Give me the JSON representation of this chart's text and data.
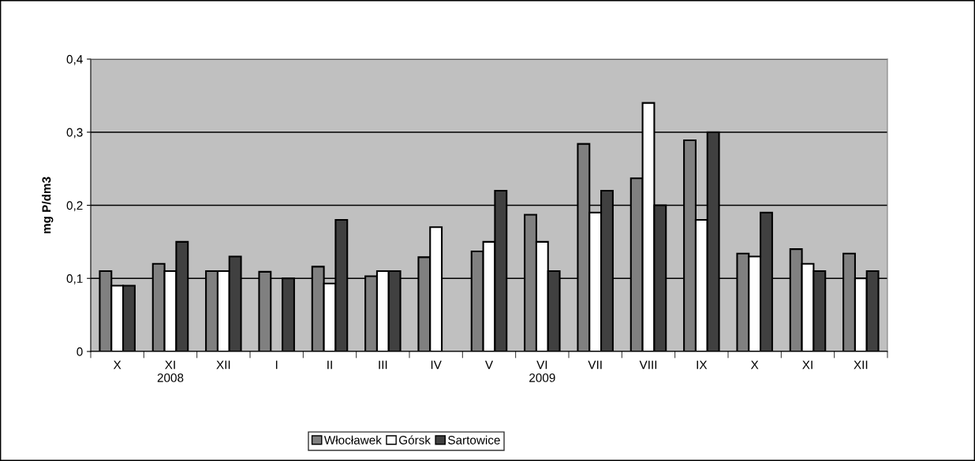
{
  "chart_data": {
    "type": "bar",
    "ylabel": "mg P/dm3",
    "categories": [
      "X",
      "XI\n2008",
      "XII",
      "I",
      "II",
      "III",
      "IV",
      "V",
      "VI\n2009",
      "VII",
      "VIII",
      "IX",
      "X",
      "XI",
      "XII"
    ],
    "series": [
      {
        "name": "Włocławek",
        "color": "#808080",
        "values": [
          0.11,
          0.12,
          0.11,
          0.109,
          0.116,
          0.103,
          0.129,
          0.137,
          0.187,
          0.284,
          0.237,
          0.289,
          0.134,
          0.14,
          0.134
        ]
      },
      {
        "name": "Górsk",
        "color": "#ffffff",
        "values": [
          0.09,
          0.11,
          0.11,
          null,
          0.093,
          0.11,
          0.17,
          0.15,
          0.15,
          0.19,
          0.34,
          0.18,
          0.13,
          0.12,
          0.1
        ]
      },
      {
        "name": "Sartowice",
        "color": "#404040",
        "values": [
          0.09,
          0.15,
          0.13,
          0.1,
          0.18,
          0.11,
          null,
          0.22,
          0.11,
          0.22,
          0.2,
          0.3,
          0.19,
          0.11,
          0.11
        ]
      }
    ],
    "ylim": [
      0,
      0.4
    ],
    "yticks": [
      0,
      {
        "value": 0.1,
        "label": "0,1"
      },
      {
        "value": 0.2,
        "label": "0,2"
      },
      {
        "value": 0.3,
        "label": "0,3"
      },
      {
        "value": 0.4,
        "label": "0,4"
      }
    ],
    "grid": "y",
    "legend": "bottom"
  }
}
